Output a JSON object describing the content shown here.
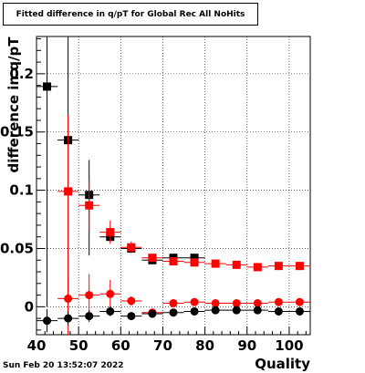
{
  "chart_data": {
    "type": "scatter",
    "title": "Fitted difference in q/pT for Global Rec All NoHits",
    "xlabel": "Quality",
    "ylabel": "difference in q/pT",
    "xlim": [
      40,
      105
    ],
    "ylim": [
      -0.024,
      0.232
    ],
    "x_ticks": [
      40,
      50,
      60,
      70,
      80,
      90,
      100
    ],
    "y_ticks": [
      0,
      0.05,
      0.1,
      0.15,
      0.2
    ],
    "grid": true,
    "legend": "none",
    "series": [
      {
        "marker": "square",
        "color": "#000000",
        "points": [
          {
            "x": 42.5,
            "y": 0.189,
            "ex": 2.5,
            "eyl": 0.189,
            "eyh": 0.06
          },
          {
            "x": 47.5,
            "y": 0.143,
            "ex": 2.5,
            "eyl": 0.135,
            "eyh": 0.09
          },
          {
            "x": 52.5,
            "y": 0.096,
            "ex": 2.5,
            "eyl": 0.052,
            "eyh": 0.03
          },
          {
            "x": 57.5,
            "y": 0.06,
            "ex": 2.5,
            "eyl": 0.004,
            "eyh": 0.004
          },
          {
            "x": 62.5,
            "y": 0.05,
            "ex": 2.5,
            "eyl": 0.003,
            "eyh": 0.003
          },
          {
            "x": 67.5,
            "y": 0.04,
            "ex": 2.5,
            "eyl": 0.002,
            "eyh": 0.002
          },
          {
            "x": 72.5,
            "y": 0.042,
            "ex": 2.5,
            "eyl": 0.002,
            "eyh": 0.002
          },
          {
            "x": 77.5,
            "y": 0.042,
            "ex": 2.5,
            "eyl": 0.002,
            "eyh": 0.002
          }
        ]
      },
      {
        "marker": "square",
        "color": "#ff0000",
        "points": [
          {
            "x": 47.5,
            "y": 0.099,
            "ex": 2.5,
            "eyl": 0.135,
            "eyh": 0.066
          },
          {
            "x": 52.5,
            "y": 0.087,
            "ex": 2.5,
            "eyl": 0.022,
            "eyh": 0.022
          },
          {
            "x": 57.5,
            "y": 0.064,
            "ex": 2.5,
            "eyl": 0.01,
            "eyh": 0.01
          },
          {
            "x": 62.5,
            "y": 0.051,
            "ex": 2.5,
            "eyl": 0.005,
            "eyh": 0.005
          },
          {
            "x": 67.5,
            "y": 0.042,
            "ex": 2.5,
            "eyl": 0.002,
            "eyh": 0.002
          },
          {
            "x": 72.5,
            "y": 0.039,
            "ex": 2.5,
            "eyl": 0.001,
            "eyh": 0.001
          },
          {
            "x": 77.5,
            "y": 0.038,
            "ex": 2.5,
            "eyl": 0.001,
            "eyh": 0.001
          },
          {
            "x": 82.5,
            "y": 0.037,
            "ex": 2.5,
            "eyl": 0.001,
            "eyh": 0.001
          },
          {
            "x": 87.5,
            "y": 0.036,
            "ex": 2.5,
            "eyl": 0.001,
            "eyh": 0.001
          },
          {
            "x": 92.5,
            "y": 0.034,
            "ex": 2.5,
            "eyl": 0.001,
            "eyh": 0.001
          },
          {
            "x": 97.5,
            "y": 0.035,
            "ex": 2.5,
            "eyl": 0.001,
            "eyh": 0.001
          },
          {
            "x": 102.5,
            "y": 0.035,
            "ex": 2.5,
            "eyl": 0.001,
            "eyh": 0.001
          }
        ]
      },
      {
        "marker": "circle",
        "color": "#ff0000",
        "points": [
          {
            "x": 47.5,
            "y": 0.007,
            "ex": 2.5,
            "eyl": 0.02,
            "eyh": 0.018
          },
          {
            "x": 52.5,
            "y": 0.01,
            "ex": 2.5,
            "eyl": 0.02,
            "eyh": 0.018
          },
          {
            "x": 57.5,
            "y": 0.011,
            "ex": 2.5,
            "eyl": 0.012,
            "eyh": 0.012
          },
          {
            "x": 62.5,
            "y": 0.005,
            "ex": 2.5,
            "eyl": 0.004,
            "eyh": 0.004
          },
          {
            "x": 67.5,
            "y": -0.005,
            "ex": 2.5,
            "eyl": 0.002,
            "eyh": 0.002
          },
          {
            "x": 72.5,
            "y": 0.003,
            "ex": 2.5,
            "eyl": 0.001,
            "eyh": 0.001
          },
          {
            "x": 77.5,
            "y": 0.004,
            "ex": 2.5,
            "eyl": 0.001,
            "eyh": 0.001
          },
          {
            "x": 82.5,
            "y": 0.003,
            "ex": 2.5,
            "eyl": 0.001,
            "eyh": 0.001
          },
          {
            "x": 87.5,
            "y": 0.003,
            "ex": 2.5,
            "eyl": 0.001,
            "eyh": 0.001
          },
          {
            "x": 92.5,
            "y": 0.003,
            "ex": 2.5,
            "eyl": 0.001,
            "eyh": 0.001
          },
          {
            "x": 97.5,
            "y": 0.004,
            "ex": 2.5,
            "eyl": 0.001,
            "eyh": 0.001
          },
          {
            "x": 102.5,
            "y": 0.004,
            "ex": 2.5,
            "eyl": 0.001,
            "eyh": 0.001
          }
        ]
      },
      {
        "marker": "circle",
        "color": "#000000",
        "points": [
          {
            "x": 42.5,
            "y": -0.012,
            "ex": 2.5,
            "eyl": 0.01,
            "eyh": 0.01
          },
          {
            "x": 47.5,
            "y": -0.01,
            "ex": 2.5,
            "eyl": 0.006,
            "eyh": 0.006
          },
          {
            "x": 52.5,
            "y": -0.008,
            "ex": 2.5,
            "eyl": 0.005,
            "eyh": 0.005
          },
          {
            "x": 57.5,
            "y": -0.004,
            "ex": 2.5,
            "eyl": 0.004,
            "eyh": 0.004
          },
          {
            "x": 62.5,
            "y": -0.008,
            "ex": 2.5,
            "eyl": 0.003,
            "eyh": 0.003
          },
          {
            "x": 67.5,
            "y": -0.006,
            "ex": 2.5,
            "eyl": 0.001,
            "eyh": 0.001
          },
          {
            "x": 72.5,
            "y": -0.005,
            "ex": 2.5,
            "eyl": 0.001,
            "eyh": 0.001
          },
          {
            "x": 77.5,
            "y": -0.004,
            "ex": 2.5,
            "eyl": 0.001,
            "eyh": 0.001
          },
          {
            "x": 82.5,
            "y": -0.003,
            "ex": 2.5,
            "eyl": 0.001,
            "eyh": 0.001
          },
          {
            "x": 87.5,
            "y": -0.003,
            "ex": 2.5,
            "eyl": 0.001,
            "eyh": 0.001
          },
          {
            "x": 92.5,
            "y": -0.003,
            "ex": 2.5,
            "eyl": 0.001,
            "eyh": 0.001
          },
          {
            "x": 97.5,
            "y": -0.004,
            "ex": 2.5,
            "eyl": 0.001,
            "eyh": 0.001
          },
          {
            "x": 102.5,
            "y": -0.004,
            "ex": 2.5,
            "eyl": 0.001,
            "eyh": 0.001
          }
        ]
      }
    ]
  },
  "footer": {
    "timestamp": "Sun Feb 20 13:52:07 2022"
  }
}
